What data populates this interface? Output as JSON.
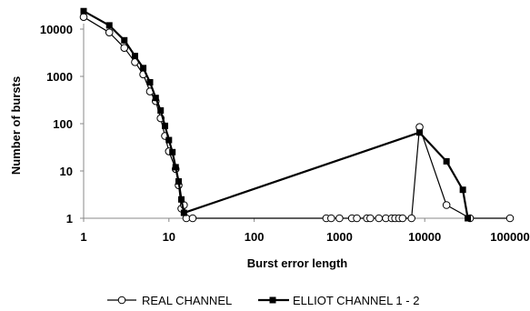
{
  "chart_data": {
    "type": "line",
    "xscale": "log",
    "yscale": "log",
    "xlabel": "Burst error length",
    "ylabel": "Number of bursts",
    "xlim": [
      1,
      100000
    ],
    "ylim": [
      1,
      10000
    ],
    "xticks": [
      "1",
      "10",
      "100",
      "1000",
      "10000",
      "100000"
    ],
    "yticks": [
      "1",
      "10",
      "100",
      "1000",
      "10000"
    ],
    "grid": false,
    "legend_position": "bottom",
    "series": [
      {
        "name": "REAL CHANNEL",
        "marker": "circle-open",
        "points": [
          [
            1,
            18000
          ],
          [
            2,
            8500
          ],
          [
            3,
            4000
          ],
          [
            4,
            2000
          ],
          [
            5,
            1100
          ],
          [
            6,
            480
          ],
          [
            7,
            300
          ],
          [
            8,
            130
          ],
          [
            9,
            55
          ],
          [
            10,
            26
          ],
          [
            12,
            11
          ],
          [
            13,
            5
          ],
          [
            14,
            1.6
          ],
          [
            15,
            1.9
          ],
          [
            16,
            1
          ],
          [
            19,
            1
          ],
          [
            700,
            1
          ],
          [
            800,
            1
          ],
          [
            1000,
            1
          ],
          [
            1400,
            1
          ],
          [
            1600,
            1
          ],
          [
            2100,
            1
          ],
          [
            2300,
            1
          ],
          [
            2900,
            1
          ],
          [
            3500,
            1
          ],
          [
            4100,
            1
          ],
          [
            4500,
            1
          ],
          [
            5000,
            1
          ],
          [
            5500,
            1
          ],
          [
            7000,
            1
          ],
          [
            8700,
            85
          ],
          [
            18000,
            1.9
          ],
          [
            34000,
            1
          ],
          [
            100000,
            1
          ]
        ]
      },
      {
        "name": "ELLIOT CHANNEL 1 - 2",
        "marker": "square-filled",
        "points": [
          [
            1,
            24000
          ],
          [
            2,
            12000
          ],
          [
            3,
            5800
          ],
          [
            4,
            2700
          ],
          [
            5,
            1500
          ],
          [
            6,
            750
          ],
          [
            7,
            350
          ],
          [
            8,
            190
          ],
          [
            9,
            90
          ],
          [
            10,
            45
          ],
          [
            11,
            25
          ],
          [
            12,
            12
          ],
          [
            13,
            6
          ],
          [
            14,
            2.5
          ],
          [
            15,
            1.3
          ],
          [
            8700,
            65
          ],
          [
            18000,
            16
          ],
          [
            28000,
            4
          ],
          [
            32000,
            1
          ]
        ]
      }
    ]
  }
}
